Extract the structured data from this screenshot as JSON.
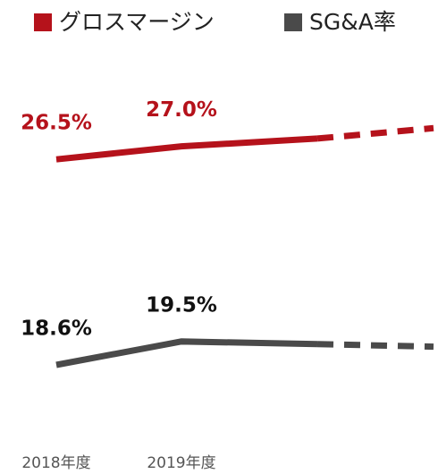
{
  "chart_data": {
    "type": "line",
    "categories": [
      "2018年度",
      "2019年度",
      null,
      null
    ],
    "series": [
      {
        "name": "グロスマージン",
        "color": "#b5121b",
        "values": [
          26.5,
          27.0,
          27.3,
          27.7
        ],
        "value_labels": [
          "26.5%",
          "27.0%",
          null,
          null
        ]
      },
      {
        "name": "SG&A率",
        "color": "#4a4a4a",
        "values": [
          18.6,
          19.5,
          19.4,
          19.3
        ],
        "value_labels": [
          "18.6%",
          "19.5%",
          null,
          null
        ]
      }
    ],
    "ylim": [
      17.5,
      28.5
    ],
    "dashed_from": 2,
    "legend": "top"
  }
}
